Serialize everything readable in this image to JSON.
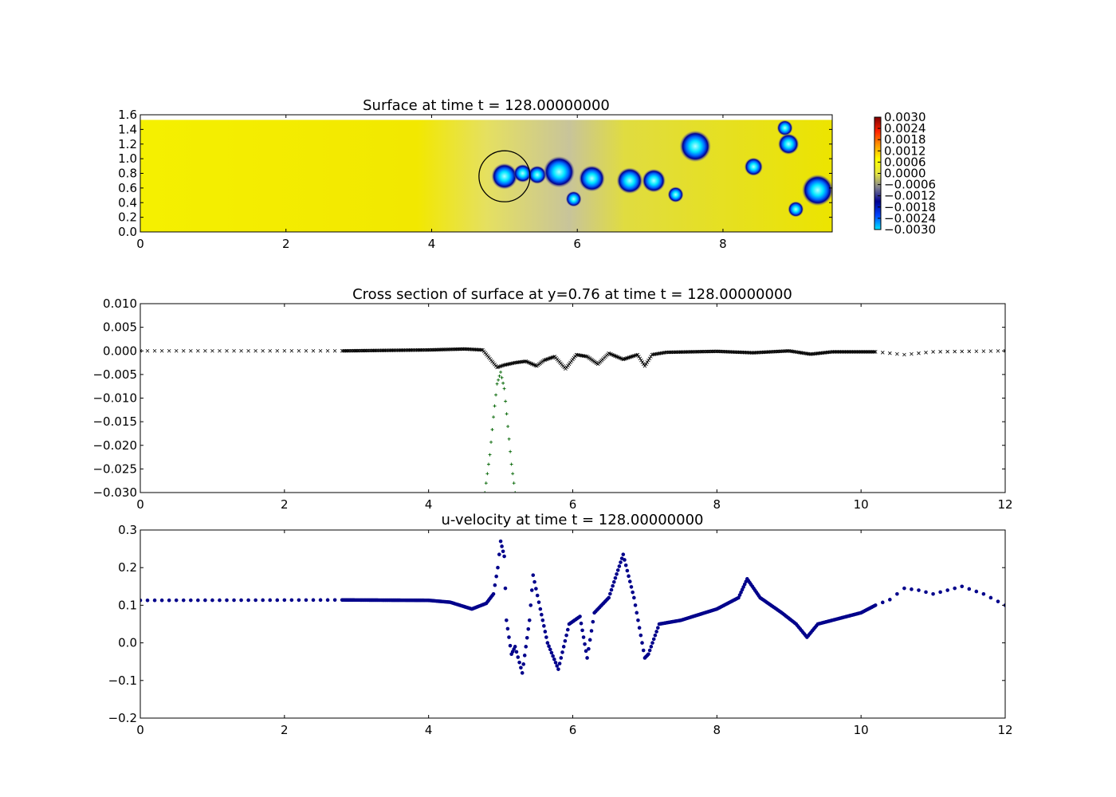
{
  "chart_data": [
    {
      "type": "heatmap",
      "title": "Surface at time t =   128.00000000",
      "xlim": [
        0,
        9.5
      ],
      "ylim": [
        0,
        1.6
      ],
      "xticks": [
        "0",
        "2",
        "4",
        "6",
        "8"
      ],
      "yticks": [
        "0.0",
        "0.2",
        "0.4",
        "0.6",
        "0.8",
        "1.0",
        "1.2",
        "1.4",
        "1.6"
      ],
      "domain_top_y": 1.53,
      "colorbar": {
        "min": -0.003,
        "max": 0.003,
        "ticks": [
          "0.0030",
          "0.0024",
          "0.0018",
          "0.0012",
          "0.0006",
          "0.0000",
          "−0.0006",
          "−0.0012",
          "−0.0018",
          "−0.0024",
          "−0.0030"
        ],
        "colors": [
          "#00e5ff",
          "#0044ff",
          "#000090",
          "#808090",
          "#e6e640",
          "#ffff00",
          "#ff9900",
          "#ff2200",
          "#800000"
        ]
      },
      "circle": {
        "cx": 5.0,
        "cy": 0.76,
        "r": 0.35
      },
      "vortices": [
        {
          "x": 5.0,
          "y": 0.76,
          "r": 0.1
        },
        {
          "x": 5.25,
          "y": 0.8,
          "r": 0.07
        },
        {
          "x": 5.45,
          "y": 0.78,
          "r": 0.07
        },
        {
          "x": 5.75,
          "y": 0.82,
          "r": 0.12
        },
        {
          "x": 5.95,
          "y": 0.45,
          "r": 0.06
        },
        {
          "x": 6.2,
          "y": 0.73,
          "r": 0.1
        },
        {
          "x": 6.72,
          "y": 0.7,
          "r": 0.1
        },
        {
          "x": 7.05,
          "y": 0.7,
          "r": 0.09
        },
        {
          "x": 7.35,
          "y": 0.51,
          "r": 0.06
        },
        {
          "x": 7.62,
          "y": 1.17,
          "r": 0.12
        },
        {
          "x": 8.42,
          "y": 0.89,
          "r": 0.07
        },
        {
          "x": 8.85,
          "y": 1.42,
          "r": 0.06
        },
        {
          "x": 8.9,
          "y": 1.2,
          "r": 0.08
        },
        {
          "x": 9.0,
          "y": 0.31,
          "r": 0.06
        },
        {
          "x": 9.3,
          "y": 0.57,
          "r": 0.12
        }
      ]
    },
    {
      "type": "scatter",
      "title": "Cross section of surface at y=0.76 at time t =   128.00000000",
      "xlim": [
        0,
        12
      ],
      "ylim": [
        -0.03,
        0.01
      ],
      "xticks": [
        "0",
        "2",
        "4",
        "6",
        "8",
        "10",
        "12"
      ],
      "yticks": [
        "0.010",
        "0.005",
        "0.000",
        "−0.005",
        "−0.010",
        "−0.015",
        "−0.020",
        "−0.025",
        "−0.030"
      ],
      "series": [
        {
          "marker": "x",
          "color": "#000000",
          "x": [
            0.0,
            2.8,
            4.0,
            4.5,
            4.75,
            4.95,
            5.05,
            5.2,
            5.35,
            5.5,
            5.6,
            5.75,
            5.9,
            6.05,
            6.2,
            6.35,
            6.5,
            6.7,
            6.9,
            7.0,
            7.1,
            7.3,
            8.0,
            8.5,
            9.0,
            9.3,
            9.6,
            10.2,
            10.6,
            10.8,
            11.0,
            12.0
          ],
          "y": [
            0.0,
            0.0,
            0.0002,
            0.0004,
            0.0002,
            -0.0035,
            -0.003,
            -0.0025,
            -0.0022,
            -0.0032,
            -0.002,
            -0.0012,
            -0.0038,
            -0.0008,
            -0.0012,
            -0.0028,
            -0.0005,
            -0.0018,
            -0.0008,
            -0.0032,
            -0.0008,
            -0.0003,
            -0.0001,
            -0.0004,
            0.0,
            -0.0007,
            -0.0002,
            -0.0002,
            -0.0008,
            -0.0005,
            -0.0002,
            0.0
          ]
        },
        {
          "marker": "+",
          "color": "#006400",
          "x": [
            4.78,
            4.85,
            4.9,
            4.95,
            5.0,
            5.05,
            5.1,
            5.15,
            5.2
          ],
          "y": [
            -0.03,
            -0.022,
            -0.014,
            -0.007,
            -0.0045,
            -0.008,
            -0.016,
            -0.024,
            -0.03
          ]
        }
      ]
    },
    {
      "type": "scatter",
      "title": "u-velocity at time t =   128.00000000",
      "xlim": [
        0,
        12
      ],
      "ylim": [
        -0.2,
        0.3
      ],
      "xticks": [
        "0",
        "2",
        "4",
        "6",
        "8",
        "10",
        "12"
      ],
      "yticks": [
        "0.3",
        "0.2",
        "0.1",
        "0.0",
        "−0.1",
        "−0.2"
      ],
      "series": [
        {
          "marker": "o",
          "color": "#00008b",
          "x": [
            0.0,
            2.8,
            4.0,
            4.3,
            4.6,
            4.8,
            4.9,
            4.96,
            5.0,
            5.05,
            5.08,
            5.15,
            5.2,
            5.3,
            5.4,
            5.45,
            5.55,
            5.65,
            5.8,
            5.95,
            6.1,
            6.2,
            6.3,
            6.5,
            6.7,
            6.85,
            7.0,
            7.05,
            7.2,
            7.5,
            8.0,
            8.3,
            8.42,
            8.6,
            8.9,
            9.1,
            9.25,
            9.4,
            9.7,
            10.0,
            10.2,
            10.4,
            10.6,
            10.8,
            11.0,
            11.2,
            11.4,
            11.7,
            12.0
          ],
          "y": [
            0.113,
            0.114,
            0.113,
            0.108,
            0.09,
            0.105,
            0.13,
            0.2,
            0.27,
            0.23,
            0.06,
            -0.03,
            -0.01,
            -0.08,
            0.06,
            0.18,
            0.09,
            0.0,
            -0.07,
            0.05,
            0.07,
            -0.04,
            0.08,
            0.12,
            0.235,
            0.12,
            -0.04,
            -0.03,
            0.05,
            0.06,
            0.09,
            0.12,
            0.17,
            0.12,
            0.08,
            0.05,
            0.015,
            0.05,
            0.065,
            0.08,
            0.1,
            0.115,
            0.145,
            0.14,
            0.13,
            0.14,
            0.15,
            0.13,
            0.1
          ]
        }
      ]
    }
  ]
}
